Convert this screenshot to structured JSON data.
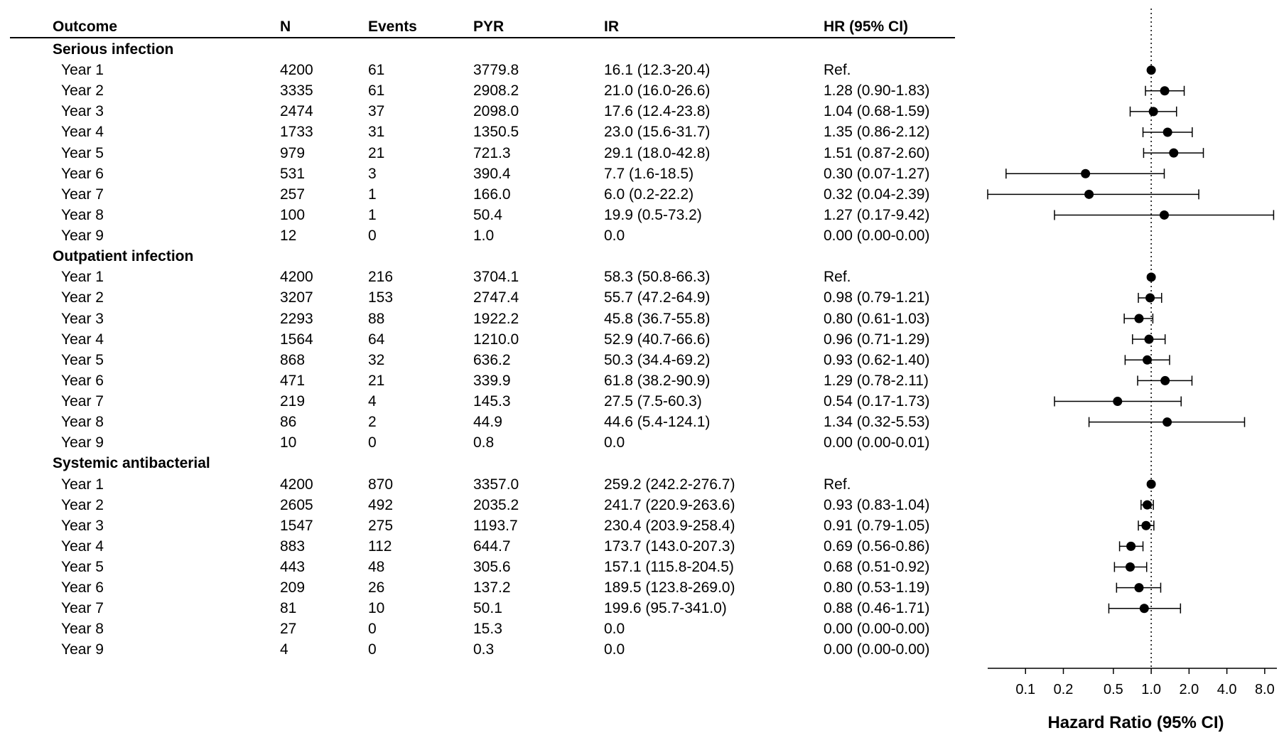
{
  "columns": {
    "outcome": "Outcome",
    "n": "N",
    "events": "Events",
    "pyr": "PYR",
    "ir": "IR",
    "hr": "HR (95% CI)"
  },
  "sections": [
    {
      "title": "Serious infection",
      "rows": [
        {
          "label": "Year 1",
          "n": "4200",
          "events": "61",
          "pyr": "3779.8",
          "ir": "16.1 (12.3-20.4)",
          "hr": "Ref."
        },
        {
          "label": "Year 2",
          "n": "3335",
          "events": "61",
          "pyr": "2908.2",
          "ir": "21.0 (16.0-26.6)",
          "hr": "1.28 (0.90-1.83)"
        },
        {
          "label": "Year 3",
          "n": "2474",
          "events": "37",
          "pyr": "2098.0",
          "ir": "17.6 (12.4-23.8)",
          "hr": "1.04 (0.68-1.59)"
        },
        {
          "label": "Year 4",
          "n": "1733",
          "events": "31",
          "pyr": "1350.5",
          "ir": "23.0 (15.6-31.7)",
          "hr": "1.35 (0.86-2.12)"
        },
        {
          "label": "Year 5",
          "n": "979",
          "events": "21",
          "pyr": "721.3",
          "ir": "29.1 (18.0-42.8)",
          "hr": "1.51 (0.87-2.60)"
        },
        {
          "label": "Year 6",
          "n": "531",
          "events": "3",
          "pyr": "390.4",
          "ir": "7.7 (1.6-18.5)",
          "hr": "0.30 (0.07-1.27)"
        },
        {
          "label": "Year 7",
          "n": "257",
          "events": "1",
          "pyr": "166.0",
          "ir": "6.0 (0.2-22.2)",
          "hr": "0.32 (0.04-2.39)"
        },
        {
          "label": "Year 8",
          "n": "100",
          "events": "1",
          "pyr": "50.4",
          "ir": "19.9 (0.5-73.2)",
          "hr": "1.27 (0.17-9.42)"
        },
        {
          "label": "Year 9",
          "n": "12",
          "events": "0",
          "pyr": "1.0",
          "ir": "0.0",
          "hr": "0.00 (0.00-0.00)"
        }
      ]
    },
    {
      "title": "Outpatient infection",
      "rows": [
        {
          "label": "Year 1",
          "n": "4200",
          "events": "216",
          "pyr": "3704.1",
          "ir": "58.3 (50.8-66.3)",
          "hr": "Ref."
        },
        {
          "label": "Year 2",
          "n": "3207",
          "events": "153",
          "pyr": "2747.4",
          "ir": "55.7 (47.2-64.9)",
          "hr": "0.98 (0.79-1.21)"
        },
        {
          "label": "Year 3",
          "n": "2293",
          "events": "88",
          "pyr": "1922.2",
          "ir": "45.8 (36.7-55.8)",
          "hr": "0.80 (0.61-1.03)"
        },
        {
          "label": "Year 4",
          "n": "1564",
          "events": "64",
          "pyr": "1210.0",
          "ir": "52.9 (40.7-66.6)",
          "hr": "0.96 (0.71-1.29)"
        },
        {
          "label": "Year 5",
          "n": "868",
          "events": "32",
          "pyr": "636.2",
          "ir": "50.3 (34.4-69.2)",
          "hr": "0.93 (0.62-1.40)"
        },
        {
          "label": "Year 6",
          "n": "471",
          "events": "21",
          "pyr": "339.9",
          "ir": "61.8 (38.2-90.9)",
          "hr": "1.29 (0.78-2.11)"
        },
        {
          "label": "Year 7",
          "n": "219",
          "events": "4",
          "pyr": "145.3",
          "ir": "27.5 (7.5-60.3)",
          "hr": "0.54 (0.17-1.73)"
        },
        {
          "label": "Year 8",
          "n": "86",
          "events": "2",
          "pyr": "44.9",
          "ir": "44.6 (5.4-124.1)",
          "hr": "1.34 (0.32-5.53)"
        },
        {
          "label": "Year 9",
          "n": "10",
          "events": "0",
          "pyr": "0.8",
          "ir": "0.0",
          "hr": "0.00 (0.00-0.01)"
        }
      ]
    },
    {
      "title": "Systemic antibacterial",
      "rows": [
        {
          "label": "Year 1",
          "n": "4200",
          "events": "870",
          "pyr": "3357.0",
          "ir": "259.2 (242.2-276.7)",
          "hr": "Ref."
        },
        {
          "label": "Year 2",
          "n": "2605",
          "events": "492",
          "pyr": "2035.2",
          "ir": "241.7 (220.9-263.6)",
          "hr": "0.93 (0.83-1.04)"
        },
        {
          "label": "Year 3",
          "n": "1547",
          "events": "275",
          "pyr": "1193.7",
          "ir": "230.4 (203.9-258.4)",
          "hr": "0.91 (0.79-1.05)"
        },
        {
          "label": "Year 4",
          "n": "883",
          "events": "112",
          "pyr": "644.7",
          "ir": "173.7 (143.0-207.3)",
          "hr": "0.69 (0.56-0.86)"
        },
        {
          "label": "Year 5",
          "n": "443",
          "events": "48",
          "pyr": "305.6",
          "ir": "157.1 (115.8-204.5)",
          "hr": "0.68 (0.51-0.92)"
        },
        {
          "label": "Year 6",
          "n": "209",
          "events": "26",
          "pyr": "137.2",
          "ir": "189.5 (123.8-269.0)",
          "hr": "0.80 (0.53-1.19)"
        },
        {
          "label": "Year 7",
          "n": "81",
          "events": "10",
          "pyr": "50.1",
          "ir": "199.6 (95.7-341.0)",
          "hr": "0.88 (0.46-1.71)"
        },
        {
          "label": "Year 8",
          "n": "27",
          "events": "0",
          "pyr": "15.3",
          "ir": "0.0",
          "hr": "0.00 (0.00-0.00)"
        },
        {
          "label": "Year 9",
          "n": "4",
          "events": "0",
          "pyr": "0.3",
          "ir": "0.0",
          "hr": "0.00 (0.00-0.00)"
        }
      ]
    }
  ],
  "chart_data": {
    "type": "scatter",
    "xlabel": "Hazard Ratio (95% CI)",
    "xscale": "log",
    "xlim": [
      0.05,
      10.0
    ],
    "xticks": [
      0.1,
      0.2,
      0.5,
      1.0,
      2.0,
      4.0,
      8.0
    ],
    "xtick_labels": [
      "0.1",
      "0.2",
      "0.5",
      "1.0",
      "2.0",
      "4.0",
      "8.0"
    ],
    "reference_line": 1.0,
    "grid": false,
    "points": [
      {
        "group": "Serious infection",
        "label": "Year 1",
        "hr": 1.0,
        "lo": null,
        "hi": null
      },
      {
        "group": "Serious infection",
        "label": "Year 2",
        "hr": 1.28,
        "lo": 0.9,
        "hi": 1.83
      },
      {
        "group": "Serious infection",
        "label": "Year 3",
        "hr": 1.04,
        "lo": 0.68,
        "hi": 1.59
      },
      {
        "group": "Serious infection",
        "label": "Year 4",
        "hr": 1.35,
        "lo": 0.86,
        "hi": 2.12
      },
      {
        "group": "Serious infection",
        "label": "Year 5",
        "hr": 1.51,
        "lo": 0.87,
        "hi": 2.6
      },
      {
        "group": "Serious infection",
        "label": "Year 6",
        "hr": 0.3,
        "lo": 0.07,
        "hi": 1.27
      },
      {
        "group": "Serious infection",
        "label": "Year 7",
        "hr": 0.32,
        "lo": 0.04,
        "hi": 2.39
      },
      {
        "group": "Serious infection",
        "label": "Year 8",
        "hr": 1.27,
        "lo": 0.17,
        "hi": 9.42
      },
      {
        "group": "Serious infection",
        "label": "Year 9",
        "hr": null,
        "lo": null,
        "hi": null
      },
      {
        "group": "Outpatient infection",
        "label": "Year 1",
        "hr": 1.0,
        "lo": null,
        "hi": null
      },
      {
        "group": "Outpatient infection",
        "label": "Year 2",
        "hr": 0.98,
        "lo": 0.79,
        "hi": 1.21
      },
      {
        "group": "Outpatient infection",
        "label": "Year 3",
        "hr": 0.8,
        "lo": 0.61,
        "hi": 1.03
      },
      {
        "group": "Outpatient infection",
        "label": "Year 4",
        "hr": 0.96,
        "lo": 0.71,
        "hi": 1.29
      },
      {
        "group": "Outpatient infection",
        "label": "Year 5",
        "hr": 0.93,
        "lo": 0.62,
        "hi": 1.4
      },
      {
        "group": "Outpatient infection",
        "label": "Year 6",
        "hr": 1.29,
        "lo": 0.78,
        "hi": 2.11
      },
      {
        "group": "Outpatient infection",
        "label": "Year 7",
        "hr": 0.54,
        "lo": 0.17,
        "hi": 1.73
      },
      {
        "group": "Outpatient infection",
        "label": "Year 8",
        "hr": 1.34,
        "lo": 0.32,
        "hi": 5.53
      },
      {
        "group": "Outpatient infection",
        "label": "Year 9",
        "hr": null,
        "lo": null,
        "hi": null
      },
      {
        "group": "Systemic antibacterial",
        "label": "Year 1",
        "hr": 1.0,
        "lo": null,
        "hi": null
      },
      {
        "group": "Systemic antibacterial",
        "label": "Year 2",
        "hr": 0.93,
        "lo": 0.83,
        "hi": 1.04
      },
      {
        "group": "Systemic antibacterial",
        "label": "Year 3",
        "hr": 0.91,
        "lo": 0.79,
        "hi": 1.05
      },
      {
        "group": "Systemic antibacterial",
        "label": "Year 4",
        "hr": 0.69,
        "lo": 0.56,
        "hi": 0.86
      },
      {
        "group": "Systemic antibacterial",
        "label": "Year 5",
        "hr": 0.68,
        "lo": 0.51,
        "hi": 0.92
      },
      {
        "group": "Systemic antibacterial",
        "label": "Year 6",
        "hr": 0.8,
        "lo": 0.53,
        "hi": 1.19
      },
      {
        "group": "Systemic antibacterial",
        "label": "Year 7",
        "hr": 0.88,
        "lo": 0.46,
        "hi": 1.71
      },
      {
        "group": "Systemic antibacterial",
        "label": "Year 8",
        "hr": null,
        "lo": null,
        "hi": null
      },
      {
        "group": "Systemic antibacterial",
        "label": "Year 9",
        "hr": null,
        "lo": null,
        "hi": null
      }
    ]
  }
}
